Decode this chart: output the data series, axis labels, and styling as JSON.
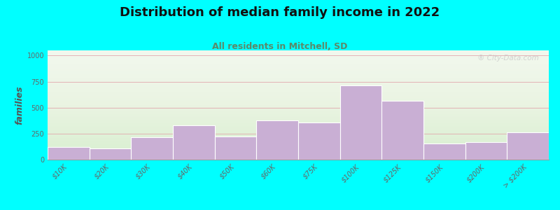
{
  "title": "Distribution of median family income in 2022",
  "subtitle": "All residents in Mitchell, SD",
  "ylabel": "families",
  "categories": [
    "$10K",
    "$20K",
    "$30K",
    "$40K",
    "$50K",
    "$60K",
    "$75K",
    "$100K",
    "$125K",
    "$150K",
    "$200K",
    "> $200K"
  ],
  "values": [
    120,
    105,
    215,
    330,
    220,
    375,
    355,
    715,
    565,
    155,
    165,
    260
  ],
  "bar_color": "#c9afd4",
  "bar_edgecolor": "#ffffff",
  "bg_top_color": "#e8f5e0",
  "bg_bottom_color": "#f8faf5",
  "bg_right_color": "#f5f0f8",
  "outer_background": "#00ffff",
  "grid_color": "#e0a0a8",
  "title_color": "#111111",
  "subtitle_color": "#5a8a6a",
  "ylabel_color": "#555555",
  "tick_color": "#666666",
  "watermark_color": "#cccccc",
  "title_fontsize": 13,
  "subtitle_fontsize": 9,
  "ylabel_fontsize": 9,
  "tick_fontsize": 7,
  "yticks": [
    0,
    250,
    500,
    750,
    1000
  ],
  "ylim": [
    0,
    1050
  ],
  "watermark": "City-Data.com"
}
